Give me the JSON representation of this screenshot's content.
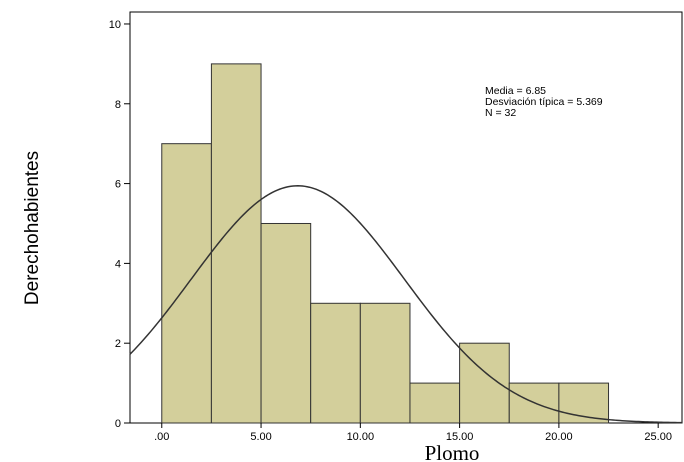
{
  "chart_data": {
    "type": "bar",
    "subtype": "histogram",
    "xlabel": "Plomo",
    "ylabel": "Derechohabientes",
    "bin_edges": [
      0,
      2.5,
      5,
      7.5,
      10,
      12.5,
      15,
      17.5,
      20,
      22.5
    ],
    "counts": [
      7,
      9,
      5,
      3,
      3,
      1,
      2,
      1,
      1
    ],
    "x_ticks": [
      0,
      5,
      10,
      15,
      20,
      25
    ],
    "x_tick_labels": [
      ".00",
      "5.00",
      "10.00",
      "15.00",
      "20.00",
      "25.00"
    ],
    "y_ticks": [
      0,
      2,
      4,
      6,
      8,
      10
    ],
    "y_tick_labels": [
      "0",
      "2",
      "4",
      "6",
      "8",
      "10"
    ],
    "xlim": [
      -1.6,
      26.2
    ],
    "ylim": [
      0,
      10.3
    ],
    "normal_curve": {
      "mean": 6.85,
      "sd": 5.369,
      "n": 32,
      "bin_width": 2.5
    },
    "stats": [
      "Media = 6.85",
      "Desviación típica = 5.369",
      "N = 32"
    ],
    "colors": {
      "bar_fill": "#d3cf9b",
      "bar_stroke": "#333333",
      "curve": "#333333",
      "frame": "#000000"
    },
    "grid": false
  }
}
